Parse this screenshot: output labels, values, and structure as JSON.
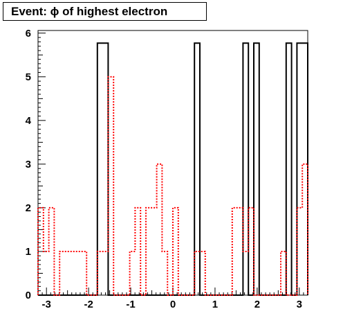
{
  "chart_data": {
    "type": "histogram",
    "title": "Event: ϕ of highest electron",
    "xlabel": "",
    "ylabel": "",
    "xlim": [
      -3.2,
      3.2
    ],
    "ylim": [
      0,
      6.06
    ],
    "x_ticks": [
      -3,
      -2,
      -1,
      0,
      1,
      2,
      3
    ],
    "y_ticks": [
      0,
      1,
      2,
      3,
      4,
      5,
      6
    ],
    "bin_edges": [
      -3.2,
      -3.072,
      -2.944,
      -2.816,
      -2.688,
      -2.56,
      -2.432,
      -2.304,
      -2.176,
      -2.048,
      -1.92,
      -1.792,
      -1.664,
      -1.536,
      -1.408,
      -1.28,
      -1.152,
      -1.024,
      -0.896,
      -0.768,
      -0.64,
      -0.512,
      -0.384,
      -0.256,
      -0.128,
      0,
      0.128,
      0.256,
      0.384,
      0.512,
      0.64,
      0.768,
      0.896,
      1.024,
      1.152,
      1.28,
      1.408,
      1.536,
      1.664,
      1.792,
      1.92,
      2.048,
      2.176,
      2.304,
      2.432,
      2.56,
      2.688,
      2.816,
      2.944,
      3.072,
      3.2
    ],
    "series": [
      {
        "color": "#000000",
        "style": "solid",
        "values": [
          0,
          0,
          0,
          0,
          0,
          0,
          0,
          0,
          0,
          0,
          0,
          5.77,
          5.77,
          0,
          0,
          0,
          0,
          0,
          0,
          0,
          0,
          0,
          0,
          0,
          0,
          0,
          0,
          0,
          0,
          5.77,
          0,
          0,
          0,
          0,
          0,
          0,
          0,
          0,
          5.77,
          0,
          5.77,
          0,
          0,
          0,
          0,
          0,
          5.77,
          0,
          5.77,
          5.77
        ]
      },
      {
        "color": "#ff0000",
        "style": "dotted",
        "values": [
          2,
          1,
          2,
          0,
          1,
          1,
          1,
          1,
          1,
          0,
          0,
          1,
          1,
          5,
          0,
          0,
          0,
          1,
          2,
          0,
          2,
          2,
          3,
          1,
          0,
          2,
          0,
          0,
          0,
          1,
          1,
          0,
          0,
          0,
          0,
          0,
          2,
          2,
          1,
          2,
          0,
          0,
          0,
          0,
          0,
          1,
          0,
          0,
          2,
          3
        ]
      }
    ]
  }
}
